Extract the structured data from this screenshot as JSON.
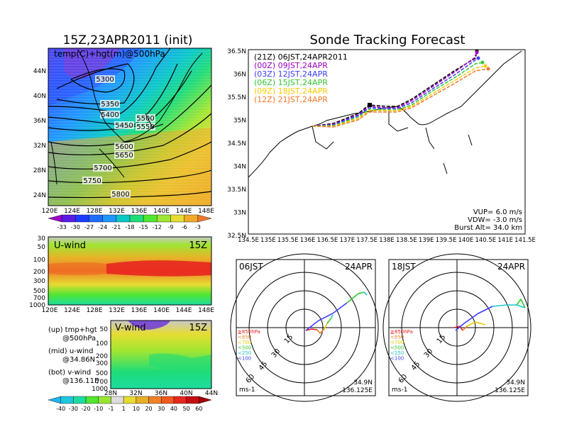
{
  "left_panel": {
    "title": "15Z,23APR2011 (init)",
    "map_label": "temp(C)+hgt(m)@500hPa",
    "lat_ticks": [
      "44N",
      "40N",
      "36N",
      "32N",
      "28N",
      "24N"
    ],
    "lon_ticks": [
      "120E",
      "124E",
      "128E",
      "132E",
      "136E",
      "140E",
      "144E",
      "148E"
    ],
    "contour_labels": [
      "5300",
      "5350",
      "5400",
      "5450",
      "5500",
      "5550",
      "5600",
      "5650",
      "5700",
      "5750",
      "5800"
    ],
    "temp_colorbar": [
      "-33",
      "-30",
      "-27",
      "-24",
      "-21",
      "-18",
      "-15",
      "-12",
      "-9",
      "-6",
      "-3"
    ],
    "temp_colors": [
      "#9a00c8",
      "#5a1ae6",
      "#1e3cff",
      "#1e6eff",
      "#1e96ff",
      "#0ac8c8",
      "#1edc78",
      "#50e632",
      "#a0e632",
      "#e6dc32",
      "#f0aa28",
      "#f0782a"
    ],
    "uwind_label": "U-wind",
    "uwind_time": "15Z",
    "uwind_pressure_ticks": [
      "30",
      "50",
      "100",
      "200",
      "300",
      "500",
      "700",
      "1000"
    ],
    "uwind_lon_ticks": [
      "120E",
      "124E",
      "128E",
      "132E",
      "136E",
      "140E",
      "144E",
      "148E"
    ],
    "vwind_label": "V-wind",
    "vwind_time": "15Z",
    "vwind_pressure_ticks": [
      "50",
      "100",
      "200",
      "300",
      "500",
      "700",
      "1000"
    ],
    "vwind_lat_ticks": [
      "28N",
      "32N",
      "36N",
      "40N",
      "44N"
    ],
    "wind_colorbar": [
      "-40",
      "-30",
      "-20",
      "-10",
      "-1",
      "1",
      "10",
      "20",
      "30",
      "40",
      "50",
      "60"
    ],
    "wind_colors": [
      "#1eb4f0",
      "#1ec8dc",
      "#1edca0",
      "#50e632",
      "#96e632",
      "#dcdcdc",
      "#e6dc32",
      "#e6af28",
      "#f08228",
      "#f05a1e",
      "#e6281e",
      "#c80a14",
      "#a00000"
    ],
    "legend_notes": [
      {
        "k": "(up) tmp+hgt",
        "v": "@500hPa"
      },
      {
        "k": "(mid) u-wind",
        "v": "@34.86N"
      },
      {
        "k": "(bot) v-wind",
        "v": "@136.11E"
      }
    ]
  },
  "right_panel": {
    "title": "Sonde Tracking Forecast",
    "lat_ticks": [
      "36.5N",
      "36N",
      "35.5N",
      "35N",
      "34.5N",
      "34N",
      "33.5N",
      "33N",
      "32.5N"
    ],
    "lon_ticks": [
      "134.5E",
      "135E",
      "135.5E",
      "136E",
      "136.5E",
      "137E",
      "137.5E",
      "138E",
      "138.5E",
      "139E",
      "139.5E",
      "140E",
      "140.5E",
      "141E",
      "141.5E"
    ],
    "tracks": [
      {
        "label": "(21Z)  06JST,24APR2011",
        "color": "#000000"
      },
      {
        "label": "(00Z)  09JST,24APR",
        "color": "#a000c8"
      },
      {
        "label": "(03Z)  12JST,24APR",
        "color": "#3c3cff"
      },
      {
        "label": "(06Z)  15JST,24APR",
        "color": "#32c832"
      },
      {
        "label": "(09Z)  18JST,24APR",
        "color": "#ffc800"
      },
      {
        "label": "(12Z)  21JST,24APR",
        "color": "#f07828"
      }
    ],
    "params": [
      "VUP=  6.0  m/s",
      "VDW= -3.0  m/s",
      "Burst Alt= 34.0  km"
    ]
  },
  "polar_left": {
    "time": "06JST",
    "date": "24APR",
    "rings": [
      "15",
      "30",
      "45",
      "60"
    ],
    "levels": [
      {
        "label": "≧850hPa",
        "color": "#e61e1e"
      },
      {
        "label": "<850",
        "color": "#f08228"
      },
      {
        "label": "<700",
        "color": "#e6c800"
      },
      {
        "label": "<500",
        "color": "#32c832"
      },
      {
        "label": "<250",
        "color": "#1ec8c8"
      },
      {
        "label": "<100",
        "color": "#3c3cff"
      }
    ],
    "unit": "ms-1",
    "lat": "34.9N",
    "lon": "136.125E"
  },
  "polar_right": {
    "time": "18JST",
    "date": "24APR",
    "rings": [
      "15",
      "30",
      "45",
      "60"
    ],
    "levels": [
      {
        "label": "≧850hPa",
        "color": "#e61e1e"
      },
      {
        "label": "<850",
        "color": "#f08228"
      },
      {
        "label": "<700",
        "color": "#e6c800"
      },
      {
        "label": "<500",
        "color": "#32c832"
      },
      {
        "label": "<250",
        "color": "#1ec8c8"
      },
      {
        "label": "<100",
        "color": "#3c3cff"
      }
    ],
    "unit": "ms-1",
    "lat": "34.9N",
    "lon": "136.125E"
  }
}
